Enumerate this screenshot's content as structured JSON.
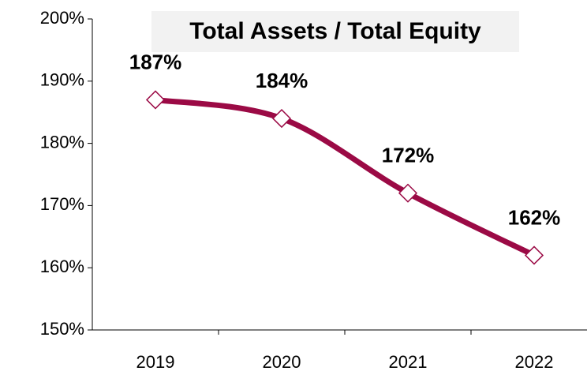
{
  "chart_data": {
    "type": "line",
    "title": "Total Assets / Total Equity",
    "categories": [
      "2019",
      "2020",
      "2021",
      "2022"
    ],
    "series": [
      {
        "name": "Total Assets / Total Equity",
        "color": "#9b0a45",
        "values": [
          187,
          184,
          172,
          162
        ],
        "value_labels": [
          "187%",
          "184%",
          "172%",
          "162%"
        ]
      }
    ],
    "ylim": [
      150,
      200
    ],
    "yticks": [
      {
        "value": 150,
        "label": "150%"
      },
      {
        "value": 160,
        "label": "160%"
      },
      {
        "value": 170,
        "label": "170%"
      },
      {
        "value": 180,
        "label": "180%"
      },
      {
        "value": 190,
        "label": "190%"
      },
      {
        "value": 200,
        "label": "200%"
      }
    ],
    "grid": false
  }
}
